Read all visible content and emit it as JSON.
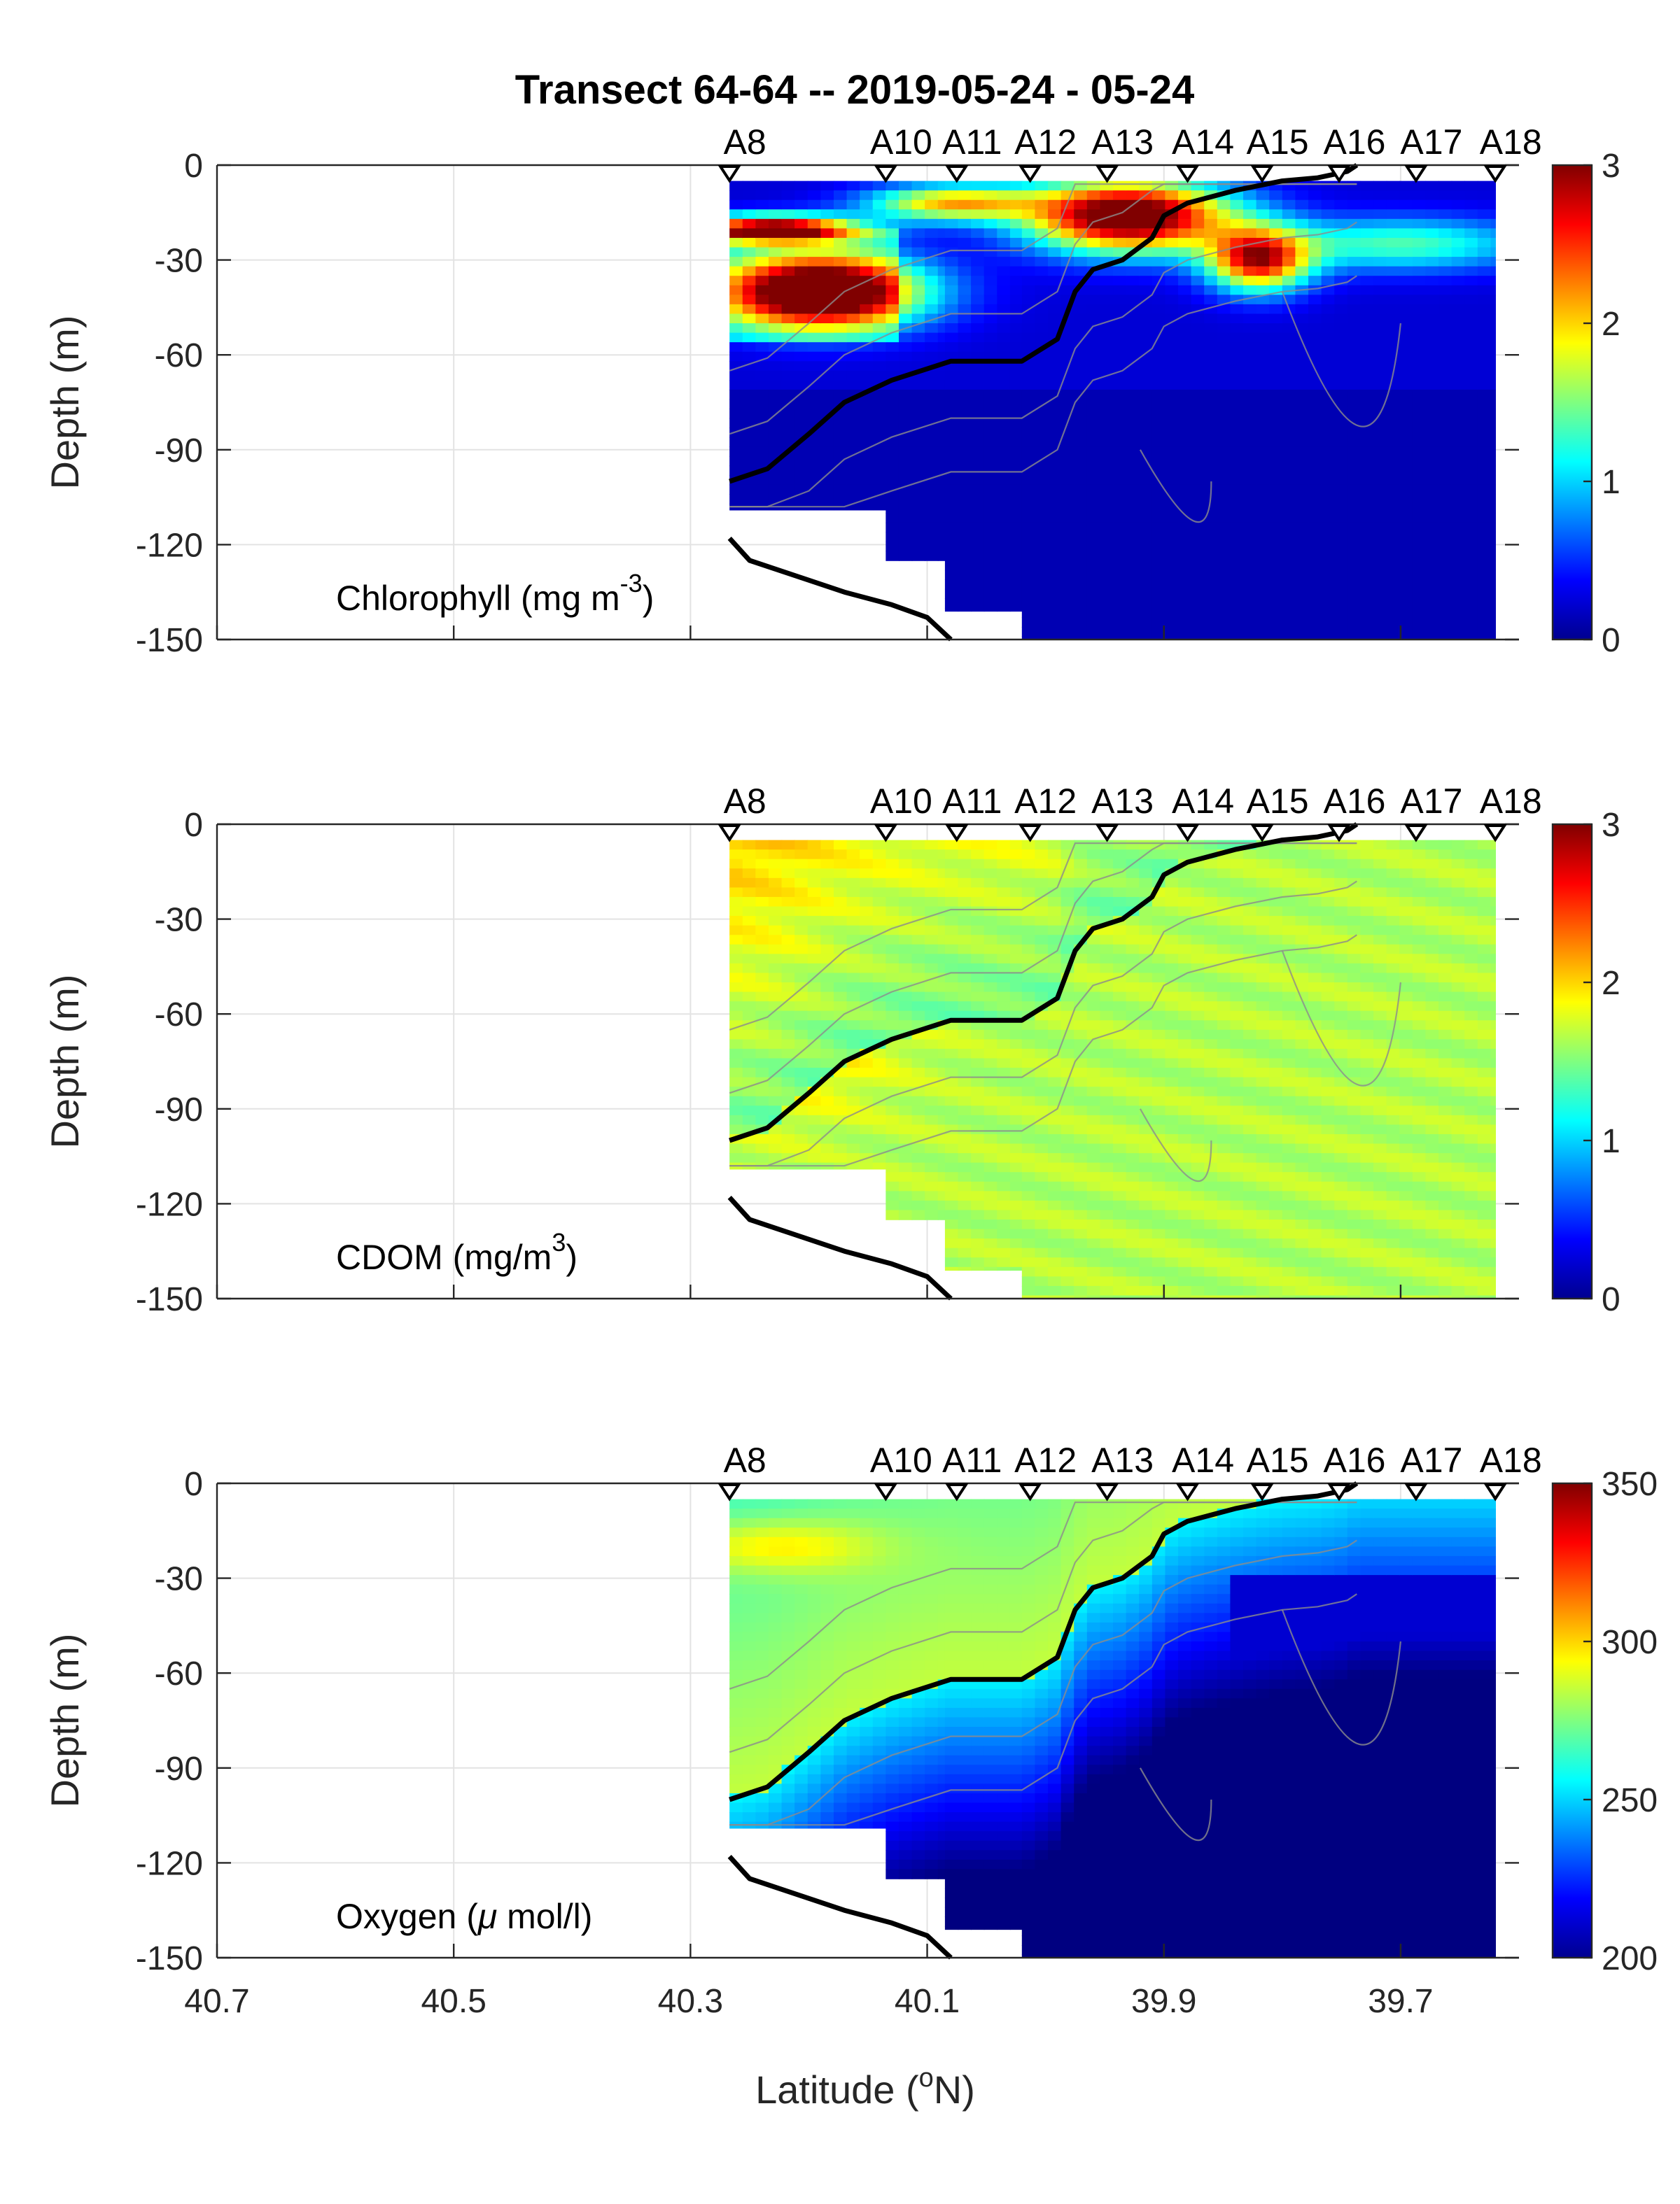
{
  "title": "Transect 64-64 -- 2019-05-24 - 05-24",
  "chart_data": [
    {
      "type": "heatmap",
      "variable": "Chlorophyll",
      "annotation": {
        "main": "Chlorophyll (mg m",
        "sup": "-3",
        "end": ")"
      },
      "ylabel": "Depth (m)",
      "xlim": [
        40.7,
        39.6
      ],
      "ylim": [
        -150,
        0
      ],
      "x_ticks": [
        "40.7",
        "40.5",
        "40.3",
        "40.1",
        "39.9",
        "39.7"
      ],
      "y_ticks": [
        "0",
        "-30",
        "-60",
        "-90",
        "-120",
        "-150"
      ],
      "colorbar": {
        "min": 0,
        "max": 3,
        "ticks": [
          "0",
          "1",
          "2",
          "3"
        ]
      },
      "grid": true,
      "stations": [
        {
          "name": "A8",
          "lat": 40.267
        },
        {
          "name": "A10",
          "lat": 40.135
        },
        {
          "name": "A11",
          "lat": 40.075
        },
        {
          "name": "A12",
          "lat": 40.013
        },
        {
          "name": "A13",
          "lat": 39.948
        },
        {
          "name": "A14",
          "lat": 39.88
        },
        {
          "name": "A15",
          "lat": 39.817
        },
        {
          "name": "A16",
          "lat": 39.752
        },
        {
          "name": "A17",
          "lat": 39.687
        },
        {
          "name": "A18",
          "lat": 39.62
        }
      ]
    },
    {
      "type": "heatmap",
      "variable": "CDOM",
      "annotation": {
        "main": "CDOM (mg/m",
        "sup": "3",
        "end": ")"
      },
      "ylabel": "Depth (m)",
      "xlim": [
        40.7,
        39.6
      ],
      "ylim": [
        -150,
        0
      ],
      "x_ticks": [
        "40.7",
        "40.5",
        "40.3",
        "40.1",
        "39.9",
        "39.7"
      ],
      "y_ticks": [
        "0",
        "-30",
        "-60",
        "-90",
        "-120",
        "-150"
      ],
      "colorbar": {
        "min": 0,
        "max": 3,
        "ticks": [
          "0",
          "1",
          "2",
          "3"
        ]
      },
      "grid": true,
      "stations": [
        {
          "name": "A8",
          "lat": 40.267
        },
        {
          "name": "A10",
          "lat": 40.135
        },
        {
          "name": "A11",
          "lat": 40.075
        },
        {
          "name": "A12",
          "lat": 40.013
        },
        {
          "name": "A13",
          "lat": 39.948
        },
        {
          "name": "A14",
          "lat": 39.88
        },
        {
          "name": "A15",
          "lat": 39.817
        },
        {
          "name": "A16",
          "lat": 39.752
        },
        {
          "name": "A17",
          "lat": 39.687
        },
        {
          "name": "A18",
          "lat": 39.62
        }
      ]
    },
    {
      "type": "heatmap",
      "variable": "Oxygen",
      "annotation": {
        "main": "Oxygen (",
        "mu": "μ",
        "end": " mol/l)"
      },
      "ylabel": "Depth (m)",
      "xlabel": "Latitude (",
      "xlabel_sup": "o",
      "xlabel_end": "N)",
      "xlim": [
        40.7,
        39.6
      ],
      "ylim": [
        -150,
        0
      ],
      "x_ticks": [
        "40.7",
        "40.5",
        "40.3",
        "40.1",
        "39.9",
        "39.7"
      ],
      "y_ticks": [
        "0",
        "-30",
        "-60",
        "-90",
        "-120",
        "-150"
      ],
      "colorbar": {
        "min": 200,
        "max": 350,
        "ticks": [
          "200",
          "250",
          "300",
          "350"
        ]
      },
      "grid": true,
      "stations": [
        {
          "name": "A8",
          "lat": 40.267
        },
        {
          "name": "A10",
          "lat": 40.135
        },
        {
          "name": "A11",
          "lat": 40.075
        },
        {
          "name": "A12",
          "lat": 40.013
        },
        {
          "name": "A13",
          "lat": 39.948
        },
        {
          "name": "A14",
          "lat": 39.88
        },
        {
          "name": "A15",
          "lat": 39.817
        },
        {
          "name": "A16",
          "lat": 39.752
        },
        {
          "name": "A17",
          "lat": 39.687
        },
        {
          "name": "A18",
          "lat": 39.62
        }
      ]
    }
  ],
  "section": {
    "lat_edges": [
      40.267,
      40.135,
      40.085,
      40.02,
      39.62
    ],
    "max_depth": [
      -109,
      -125,
      -141,
      -150
    ],
    "front_line": [
      [
        40.267,
        -100
      ],
      [
        40.235,
        -96
      ],
      [
        40.2,
        -85
      ],
      [
        40.17,
        -75
      ],
      [
        40.13,
        -68
      ],
      [
        40.08,
        -62
      ],
      [
        40.02,
        -62
      ],
      [
        39.99,
        -55
      ],
      [
        39.975,
        -40
      ],
      [
        39.96,
        -33
      ],
      [
        39.935,
        -30
      ],
      [
        39.91,
        -23
      ],
      [
        39.9,
        -16
      ],
      [
        39.88,
        -12
      ],
      [
        39.84,
        -8
      ],
      [
        39.8,
        -5
      ],
      [
        39.77,
        -4
      ],
      [
        39.745,
        -2
      ],
      [
        39.737,
        0
      ]
    ],
    "bottom_line": [
      [
        40.267,
        -118
      ],
      [
        40.25,
        -125
      ],
      [
        40.21,
        -130
      ],
      [
        40.17,
        -135
      ],
      [
        40.13,
        -139
      ],
      [
        40.1,
        -143
      ],
      [
        40.08,
        -150
      ]
    ]
  }
}
